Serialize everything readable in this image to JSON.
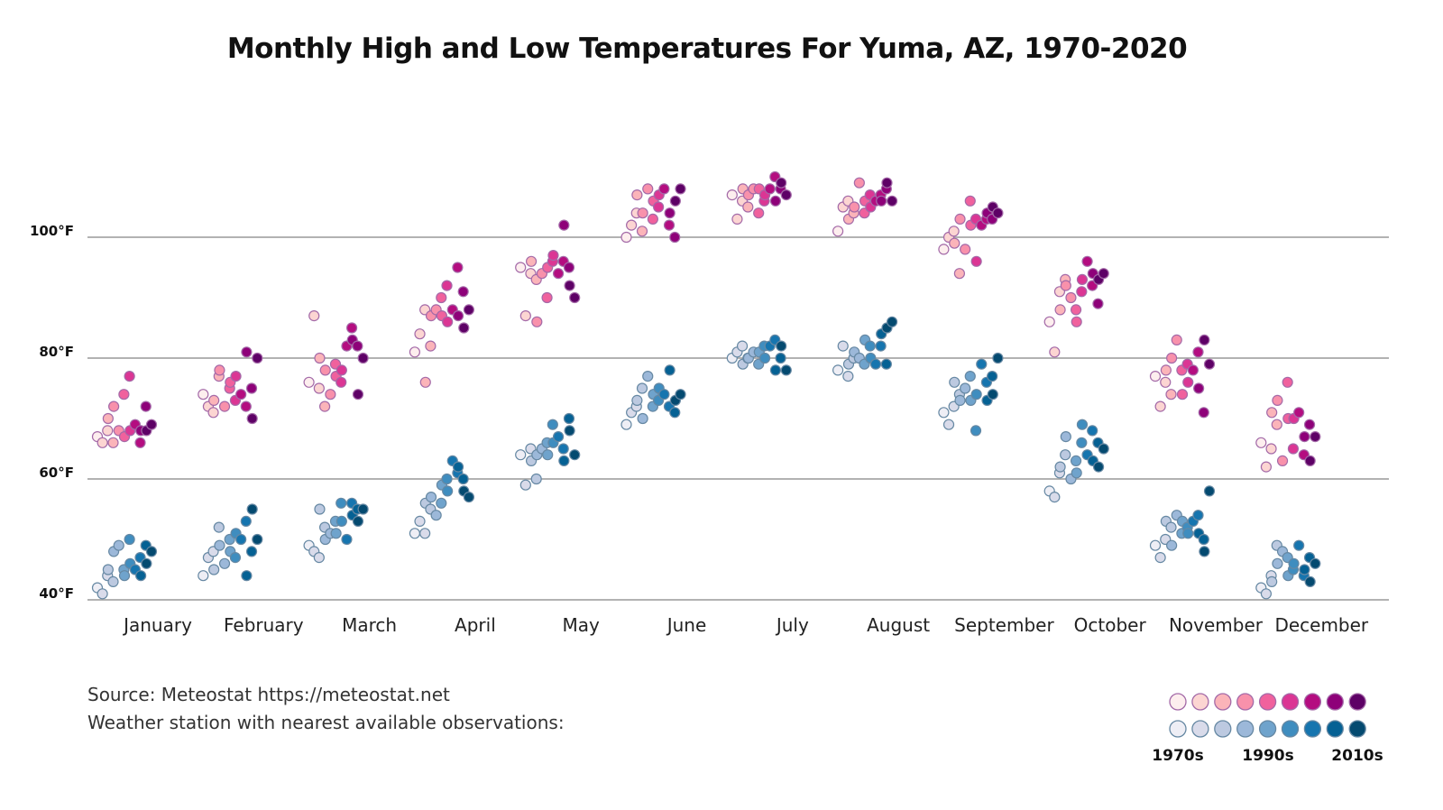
{
  "chart_data": {
    "type": "scatter",
    "title": "Monthly High and Low Temperatures For Yuma, AZ, 1970-2020",
    "ylabel": "",
    "xlabel": "",
    "ylim": [
      38,
      112
    ],
    "y_ticks": [
      {
        "value": 40,
        "label": "40°F"
      },
      {
        "value": 60,
        "label": "60°F"
      },
      {
        "value": 80,
        "label": "80°F"
      },
      {
        "value": 100,
        "label": "100°F"
      }
    ],
    "grid": true,
    "years": [
      1970,
      1973,
      1976,
      1979,
      1982,
      1985,
      1988,
      1991,
      1994,
      1997,
      2000,
      2003,
      2006,
      2009,
      2012,
      2015,
      2018
    ],
    "months": [
      {
        "name": "January",
        "high": [
          67,
          66,
          68,
          70,
          66,
          72,
          68,
          74,
          67,
          77,
          68,
          69,
          66,
          68,
          72,
          68,
          69
        ],
        "low": [
          42,
          41,
          44,
          45,
          43,
          48,
          49,
          45,
          44,
          50,
          46,
          45,
          47,
          44,
          49,
          46,
          48
        ]
      },
      {
        "name": "February",
        "high": [
          74,
          72,
          71,
          73,
          77,
          78,
          72,
          75,
          76,
          73,
          77,
          74,
          72,
          81,
          75,
          70,
          80
        ],
        "low": [
          44,
          47,
          48,
          45,
          52,
          49,
          46,
          50,
          48,
          47,
          51,
          50,
          53,
          44,
          48,
          55,
          50
        ]
      },
      {
        "name": "March",
        "high": [
          76,
          87,
          75,
          80,
          72,
          78,
          74,
          79,
          77,
          76,
          78,
          82,
          85,
          83,
          82,
          74,
          80
        ],
        "low": [
          49,
          48,
          47,
          55,
          52,
          50,
          51,
          53,
          51,
          56,
          53,
          50,
          56,
          54,
          55,
          53,
          55
        ]
      },
      {
        "name": "April",
        "high": [
          81,
          84,
          88,
          76,
          82,
          87,
          88,
          90,
          87,
          92,
          86,
          88,
          95,
          87,
          91,
          85,
          88
        ],
        "low": [
          51,
          53,
          51,
          56,
          55,
          57,
          54,
          56,
          59,
          60,
          58,
          63,
          61,
          62,
          60,
          58,
          57
        ]
      },
      {
        "name": "May",
        "high": [
          95,
          87,
          94,
          96,
          93,
          86,
          94,
          90,
          95,
          96,
          97,
          94,
          96,
          102,
          95,
          92,
          90
        ],
        "low": [
          64,
          59,
          65,
          63,
          60,
          64,
          65,
          66,
          64,
          69,
          66,
          67,
          65,
          63,
          70,
          68,
          64
        ]
      },
      {
        "name": "June",
        "high": [
          100,
          102,
          104,
          107,
          101,
          104,
          108,
          103,
          106,
          105,
          107,
          108,
          102,
          104,
          100,
          106,
          108
        ],
        "low": [
          69,
          71,
          72,
          73,
          75,
          70,
          77,
          72,
          74,
          73,
          75,
          74,
          72,
          78,
          71,
          73,
          74
        ]
      },
      {
        "name": "July",
        "high": [
          107,
          103,
          106,
          108,
          105,
          107,
          108,
          104,
          108,
          106,
          107,
          108,
          110,
          106,
          108,
          109,
          107
        ],
        "low": [
          80,
          81,
          82,
          79,
          80,
          80,
          81,
          79,
          81,
          82,
          80,
          82,
          83,
          78,
          80,
          82,
          78
        ]
      },
      {
        "name": "August",
        "high": [
          101,
          105,
          106,
          103,
          104,
          105,
          109,
          104,
          106,
          107,
          105,
          106,
          107,
          106,
          108,
          109,
          106
        ],
        "low": [
          78,
          82,
          77,
          79,
          80,
          81,
          80,
          79,
          83,
          82,
          80,
          79,
          82,
          84,
          79,
          85,
          86
        ]
      },
      {
        "name": "September",
        "high": [
          98,
          100,
          101,
          99,
          94,
          103,
          98,
          106,
          102,
          103,
          96,
          102,
          103,
          104,
          103,
          105,
          104
        ],
        "low": [
          71,
          69,
          72,
          76,
          74,
          73,
          75,
          77,
          73,
          68,
          74,
          79,
          76,
          73,
          77,
          74,
          80
        ]
      },
      {
        "name": "October",
        "high": [
          86,
          81,
          91,
          88,
          93,
          92,
          90,
          88,
          86,
          91,
          93,
          96,
          92,
          94,
          89,
          93,
          94
        ],
        "low": [
          58,
          57,
          61,
          62,
          64,
          67,
          60,
          63,
          61,
          66,
          69,
          64,
          68,
          63,
          66,
          62,
          65
        ]
      },
      {
        "name": "November",
        "high": [
          77,
          72,
          76,
          78,
          74,
          80,
          83,
          78,
          74,
          79,
          76,
          78,
          81,
          75,
          71,
          83,
          79
        ],
        "low": [
          49,
          47,
          50,
          53,
          52,
          49,
          54,
          51,
          53,
          52,
          51,
          53,
          54,
          51,
          50,
          48,
          58
        ]
      },
      {
        "name": "December",
        "high": [
          66,
          62,
          65,
          71,
          69,
          73,
          63,
          76,
          70,
          65,
          70,
          71,
          64,
          67,
          69,
          63,
          67
        ],
        "low": [
          42,
          41,
          44,
          43,
          49,
          46,
          48,
          47,
          44,
          45,
          46,
          49,
          44,
          45,
          47,
          43,
          46
        ]
      }
    ],
    "high_colors": [
      "#fdeeee",
      "#fcd5d2",
      "#fbb4b9",
      "#f891ab",
      "#f0619d",
      "#db3694",
      "#b40d80",
      "#8e0179",
      "#5e0166"
    ],
    "low_colors": [
      "#eeeef5",
      "#d9dbea",
      "#bcc9e0",
      "#9cb8d9",
      "#6fa3cc",
      "#3f8dbf",
      "#1675af",
      "#056194",
      "#044a70"
    ],
    "legend": {
      "position": "bottom-right",
      "labels": [
        "1970s",
        "1990s",
        "2010s"
      ]
    }
  },
  "source": {
    "line1": "Source: Meteostat https://meteostat.net",
    "line2": "Weather station with nearest available observations:"
  }
}
